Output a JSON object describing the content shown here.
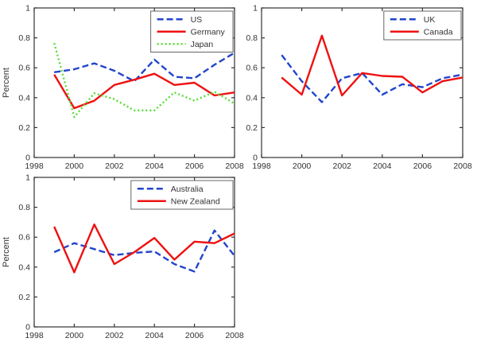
{
  "figure": {
    "background": "#ffffff",
    "axis_color": "#333333",
    "tick_label_color": "#333333",
    "legend_border_color": "#666666"
  },
  "chart_data": [
    {
      "type": "line",
      "title": "",
      "xlabel": "",
      "ylabel": "Percent",
      "xlim": [
        1998,
        2008
      ],
      "ylim": [
        0,
        1
      ],
      "xticks": [
        1998,
        2000,
        2002,
        2004,
        2006,
        2008
      ],
      "yticks": [
        0,
        0.2,
        0.4,
        0.6,
        0.8,
        1
      ],
      "ytick_labels": [
        "0",
        "0.2",
        "0.4",
        "0.6",
        "0.8",
        "1"
      ],
      "grid": false,
      "legend_position": "top-right",
      "x": [
        1999,
        2000,
        2001,
        2002,
        2003,
        2004,
        2005,
        2006,
        2007,
        2008
      ],
      "series": [
        {
          "name": "US",
          "color": "#2244cc",
          "style": "dashed",
          "values": [
            0.57,
            0.59,
            0.63,
            0.58,
            0.51,
            0.655,
            0.54,
            0.53,
            0.62,
            0.7
          ]
        },
        {
          "name": "Germany",
          "color": "#ee1111",
          "style": "solid",
          "values": [
            0.555,
            0.33,
            0.38,
            0.485,
            0.52,
            0.56,
            0.485,
            0.5,
            0.415,
            0.435
          ]
        },
        {
          "name": "Japan",
          "color": "#55dd33",
          "style": "dotted",
          "values": [
            0.765,
            0.27,
            0.43,
            0.39,
            0.315,
            0.315,
            0.435,
            0.38,
            0.44,
            0.36
          ]
        }
      ]
    },
    {
      "type": "line",
      "title": "",
      "xlabel": "",
      "ylabel": "",
      "xlim": [
        1998,
        2008
      ],
      "ylim": [
        0,
        1
      ],
      "xticks": [
        1998,
        2000,
        2002,
        2004,
        2006,
        2008
      ],
      "yticks": [
        0,
        0.2,
        0.4,
        0.6,
        0.8,
        1
      ],
      "ytick_labels": [
        "0",
        "0.2",
        "0.4",
        "0.6",
        "0.8",
        "1"
      ],
      "grid": false,
      "legend_position": "top-right",
      "x": [
        1999,
        2000,
        2001,
        2002,
        2003,
        2004,
        2005,
        2006,
        2007,
        2008
      ],
      "series": [
        {
          "name": "UK",
          "color": "#2244cc",
          "style": "dashed",
          "values": [
            0.685,
            0.51,
            0.37,
            0.53,
            0.565,
            0.42,
            0.49,
            0.47,
            0.53,
            0.555
          ]
        },
        {
          "name": "Canada",
          "color": "#ee1111",
          "style": "solid",
          "values": [
            0.535,
            0.42,
            0.815,
            0.415,
            0.565,
            0.545,
            0.54,
            0.435,
            0.51,
            0.535
          ]
        }
      ]
    },
    {
      "type": "line",
      "title": "",
      "xlabel": "",
      "ylabel": "Percent",
      "xlim": [
        1998,
        2008
      ],
      "ylim": [
        0,
        1
      ],
      "xticks": [
        1998,
        2000,
        2002,
        2004,
        2006,
        2008
      ],
      "yticks": [
        0,
        0.2,
        0.4,
        0.6,
        0.8,
        1
      ],
      "ytick_labels": [
        "0",
        "0.2",
        "0.4",
        "0.6",
        "0.8",
        "1"
      ],
      "grid": false,
      "legend_position": "top-right",
      "x": [
        1999,
        2000,
        2001,
        2002,
        2003,
        2004,
        2005,
        2006,
        2007,
        2008
      ],
      "series": [
        {
          "name": "Australia",
          "color": "#2244cc",
          "style": "dashed",
          "values": [
            0.5,
            0.56,
            0.52,
            0.48,
            0.495,
            0.505,
            0.42,
            0.37,
            0.645,
            0.475
          ]
        },
        {
          "name": "New Zealand",
          "color": "#ee1111",
          "style": "solid",
          "values": [
            0.67,
            0.365,
            0.685,
            0.42,
            0.5,
            0.595,
            0.45,
            0.57,
            0.56,
            0.625
          ]
        }
      ]
    }
  ]
}
